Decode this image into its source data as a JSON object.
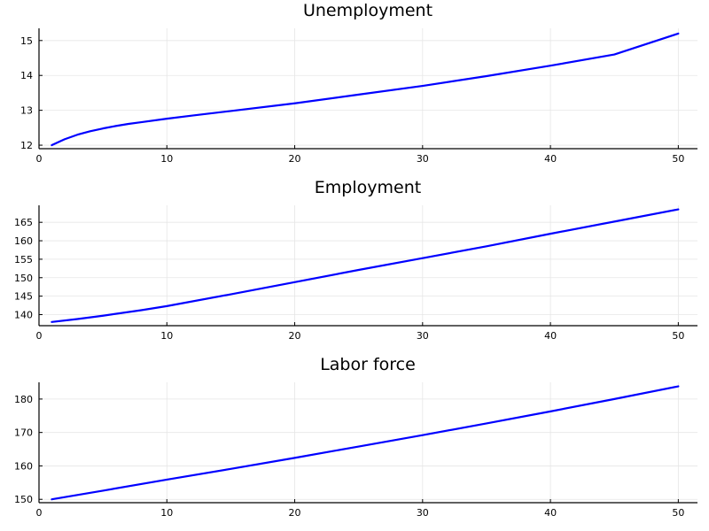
{
  "chart_data": [
    {
      "type": "line",
      "title": "Unemployment",
      "xlabel": "",
      "ylabel": "",
      "xlim": [
        0,
        51.5
      ],
      "ylim": [
        11.9,
        15.35
      ],
      "xticks": [
        0,
        10,
        20,
        30,
        40,
        50
      ],
      "yticks": [
        12,
        13,
        14,
        15
      ],
      "grid": true,
      "legend": "none",
      "series": [
        {
          "color": "#0000ff",
          "x": [
            1,
            2,
            3,
            4,
            5,
            6,
            7,
            8,
            10,
            12,
            15,
            20,
            25,
            30,
            35,
            40,
            45,
            50
          ],
          "y": [
            12.0,
            12.17,
            12.3,
            12.4,
            12.48,
            12.55,
            12.61,
            12.66,
            12.76,
            12.85,
            12.98,
            13.2,
            13.45,
            13.7,
            13.98,
            14.28,
            14.6,
            15.2
          ]
        }
      ]
    },
    {
      "type": "line",
      "title": "Employment",
      "xlabel": "",
      "ylabel": "",
      "xlim": [
        0,
        51.5
      ],
      "ylim": [
        137,
        169.6
      ],
      "xticks": [
        0,
        10,
        20,
        30,
        40,
        50
      ],
      "yticks": [
        140,
        145,
        150,
        155,
        160,
        165
      ],
      "grid": true,
      "legend": "none",
      "series": [
        {
          "color": "#0000ff",
          "x": [
            1,
            3,
            5,
            8,
            10,
            15,
            20,
            25,
            30,
            35,
            40,
            45,
            50
          ],
          "y": [
            138.0,
            138.8,
            139.7,
            141.2,
            142.3,
            145.5,
            148.8,
            152.1,
            155.3,
            158.5,
            161.9,
            165.2,
            168.5
          ]
        }
      ]
    },
    {
      "type": "line",
      "title": "Labor force",
      "xlabel": "",
      "ylabel": "",
      "xlim": [
        0,
        51.5
      ],
      "ylim": [
        149,
        185
      ],
      "xticks": [
        0,
        10,
        20,
        30,
        40,
        50
      ],
      "yticks": [
        150,
        160,
        170,
        180
      ],
      "grid": true,
      "legend": "none",
      "series": [
        {
          "color": "#0000ff",
          "x": [
            1,
            5,
            10,
            15,
            20,
            25,
            30,
            35,
            40,
            45,
            50
          ],
          "y": [
            150.0,
            152.6,
            155.9,
            159.1,
            162.4,
            165.8,
            169.2,
            172.7,
            176.3,
            180.0,
            183.8
          ]
        }
      ]
    }
  ]
}
